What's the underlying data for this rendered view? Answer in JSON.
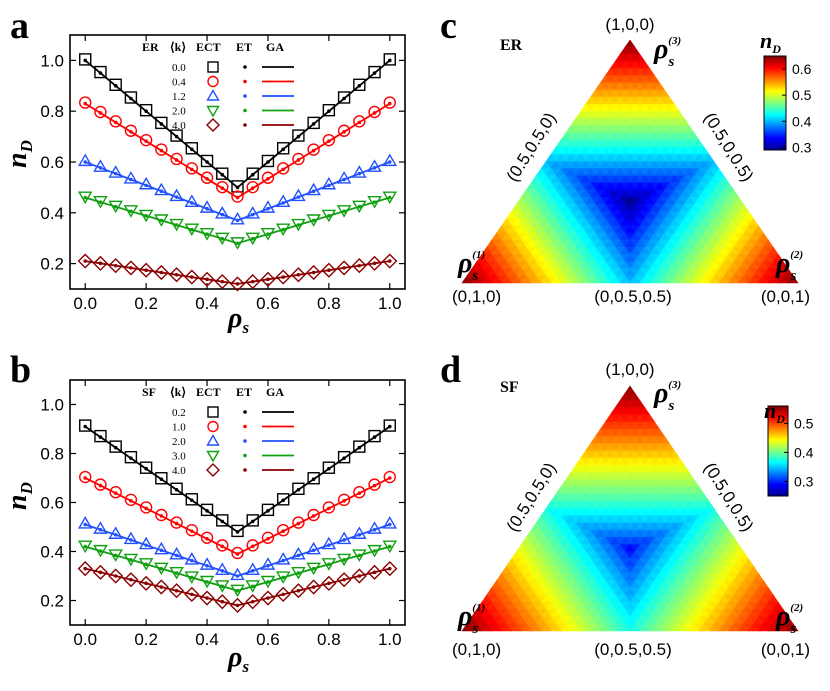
{
  "panels": {
    "a": {
      "letter": "a"
    },
    "b": {
      "letter": "b"
    },
    "c": {
      "letter": "c"
    },
    "d": {
      "letter": "d"
    }
  },
  "chart_data": [
    {
      "id": "a",
      "type": "line",
      "network": "ER",
      "legend_header": {
        "param": "⟨k⟩",
        "col1": "ECT",
        "col2": "ET",
        "col3": "GA"
      },
      "xlabel": "ρ",
      "xlabel_sub": "s",
      "ylabel": "n",
      "ylabel_sub": "D",
      "xlim": [
        -0.05,
        1.05
      ],
      "ylim": [
        0.1,
        1.1
      ],
      "xticks": [
        "0.0",
        "0.2",
        "0.4",
        "0.6",
        "0.8",
        "1.0"
      ],
      "yticks": [
        "0.2",
        "0.4",
        "0.6",
        "0.8",
        "1.0"
      ],
      "series": [
        {
          "name": "0.0",
          "color": "#000000",
          "marker": "square",
          "end": 1.0,
          "mid": 0.5
        },
        {
          "name": "0.4",
          "color": "#ff0000",
          "marker": "circle",
          "end": 0.83,
          "mid": 0.46
        },
        {
          "name": "1.2",
          "color": "#2050ff",
          "marker": "triangle",
          "end": 0.6,
          "mid": 0.37
        },
        {
          "name": "2.0",
          "color": "#10a010",
          "marker": "triangle-down",
          "end": 0.46,
          "mid": 0.28
        },
        {
          "name": "4.0",
          "color": "#8b0000",
          "marker": "diamond",
          "end": 0.21,
          "mid": 0.12
        }
      ]
    },
    {
      "id": "b",
      "type": "line",
      "network": "SF",
      "legend_header": {
        "param": "⟨k⟩",
        "col1": "ECT",
        "col2": "ET",
        "col3": "GA"
      },
      "xlabel": "ρ",
      "xlabel_sub": "s",
      "ylabel": "n",
      "ylabel_sub": "D",
      "xlim": [
        -0.05,
        1.05
      ],
      "ylim": [
        0.1,
        1.1
      ],
      "xticks": [
        "0.0",
        "0.2",
        "0.4",
        "0.6",
        "0.8",
        "1.0"
      ],
      "yticks": [
        "0.2",
        "0.4",
        "0.6",
        "0.8",
        "1.0"
      ],
      "series": [
        {
          "name": "0.2",
          "color": "#000000",
          "marker": "square",
          "end": 0.91,
          "mid": 0.48
        },
        {
          "name": "1.0",
          "color": "#ff0000",
          "marker": "circle",
          "end": 0.7,
          "mid": 0.39
        },
        {
          "name": "2.0",
          "color": "#2050ff",
          "marker": "triangle",
          "end": 0.51,
          "mid": 0.3
        },
        {
          "name": "3.0",
          "color": "#10a010",
          "marker": "triangle-down",
          "end": 0.42,
          "mid": 0.24
        },
        {
          "name": "4.0",
          "color": "#8b0000",
          "marker": "diamond",
          "end": 0.33,
          "mid": 0.18
        }
      ]
    },
    {
      "id": "c",
      "type": "heatmap",
      "network": "ER",
      "vertex_labels": {
        "top": "(1,0,0)",
        "left": "(0,1,0)",
        "right": "(0,0,1)"
      },
      "edge_labels": {
        "left": "(0.5,0.5,0)",
        "right": "(0.5,0,0.5)",
        "bottom": "(0,0.5,0.5)"
      },
      "rho_labels": {
        "top": "3",
        "left": "1",
        "right": "2"
      },
      "colorbar": {
        "title": "n",
        "title_sub": "D",
        "min": 0.29,
        "max": 0.65,
        "ticks": [
          "0.6",
          "0.5",
          "0.4",
          "0.3"
        ]
      }
    },
    {
      "id": "d",
      "type": "heatmap",
      "network": "SF",
      "vertex_labels": {
        "top": "(1,0,0)",
        "left": "(0,1,0)",
        "right": "(0,0,1)"
      },
      "edge_labels": {
        "left": "(0.5,0.5,0)",
        "right": "(0.5,0,0.5)",
        "bottom": "(0,0.5,0.5)"
      },
      "rho_labels": {
        "top": "3",
        "left": "1",
        "right": "2"
      },
      "colorbar": {
        "title": "n",
        "title_sub": "D",
        "min": 0.25,
        "max": 0.56,
        "ticks": [
          "0.5",
          "0.4",
          "0.3"
        ]
      }
    }
  ]
}
